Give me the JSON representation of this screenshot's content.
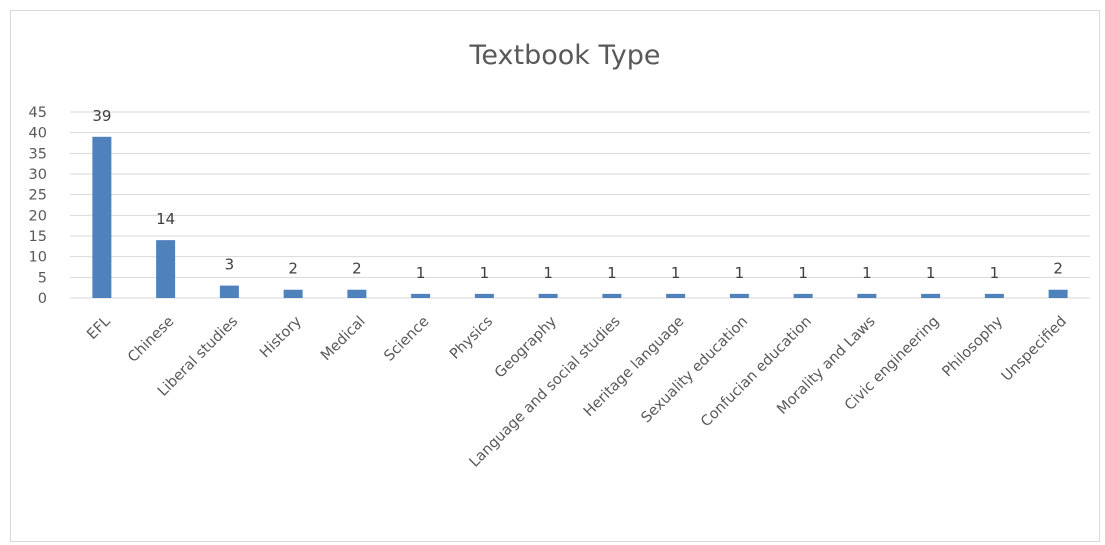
{
  "chart_data": {
    "type": "bar",
    "title": "Textbook Type",
    "xlabel": "",
    "ylabel": "",
    "categories": [
      "EFL",
      "Chinese",
      "Liberal studies",
      "History",
      "Medical",
      "Science",
      "Physics",
      "Geography",
      "Language and social studies",
      "Heritage language",
      "Sexuality education",
      "Confucian education",
      "Morality and Laws",
      "Civic engineering",
      "Philosophy",
      "Unspecified"
    ],
    "values": [
      39,
      14,
      3,
      2,
      2,
      1,
      1,
      1,
      1,
      1,
      1,
      1,
      1,
      1,
      1,
      2
    ],
    "ylim": [
      0,
      45
    ],
    "yticks": [
      0,
      5,
      10,
      15,
      20,
      25,
      30,
      35,
      40,
      45
    ],
    "grid": true,
    "legend": "none",
    "data_labels": true,
    "bar_color": "#4f81bd"
  }
}
